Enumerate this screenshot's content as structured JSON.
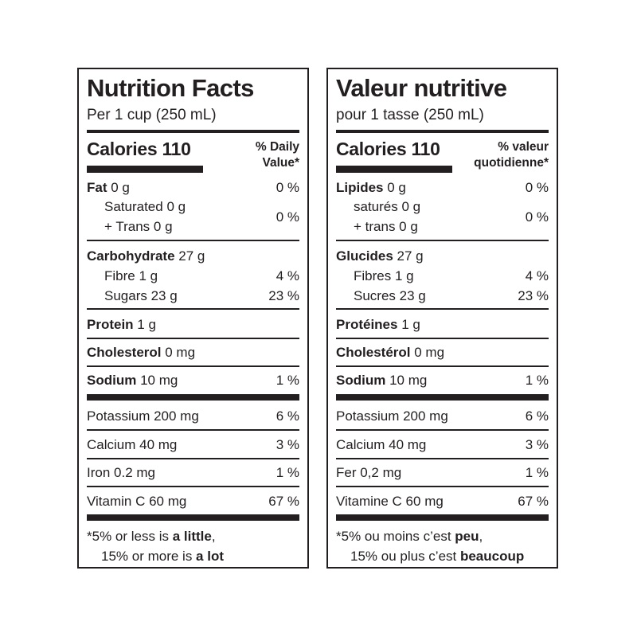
{
  "en": {
    "title": "Nutrition Facts",
    "serving": "Per 1 cup (250 mL)",
    "calories": "Calories 110",
    "dv_line1": "% Daily",
    "dv_line2": "Value*",
    "fat": {
      "name": "Fat",
      "amount": " 0 g",
      "pct": "0 %"
    },
    "sat": "Saturated 0 g",
    "trans": "+ Trans 0 g",
    "sat_trans_pct": "0 %",
    "carb": {
      "name": "Carbohydrate",
      "amount": " 27 g"
    },
    "fibre": {
      "label": "Fibre 1 g",
      "pct": "4 %"
    },
    "sugars": {
      "label": "Sugars 23 g",
      "pct": "23 %"
    },
    "protein": {
      "name": "Protein",
      "amount": " 1 g"
    },
    "cholesterol": {
      "name": "Cholesterol",
      "amount": " 0 mg"
    },
    "sodium": {
      "name": "Sodium",
      "amount": " 10 mg",
      "pct": "1 %"
    },
    "potassium": {
      "label": "Potassium 200 mg",
      "pct": "6 %"
    },
    "calcium": {
      "label": "Calcium 40 mg",
      "pct": "3 %"
    },
    "iron": {
      "label": "Iron 0.2 mg",
      "pct": "1 %"
    },
    "vitc": {
      "label": "Vitamin C 60 mg",
      "pct": "67 %"
    },
    "footnote1_pre": "*5% or less is ",
    "footnote1_bold": "a little",
    "footnote1_post": ",",
    "footnote2_pre": "15% or more is ",
    "footnote2_bold": "a lot"
  },
  "fr": {
    "title": "Valeur nutritive",
    "serving": "pour 1 tasse (250 mL)",
    "calories": "Calories 110",
    "dv_line1": "% valeur",
    "dv_line2": "quotidienne*",
    "fat": {
      "name": "Lipides",
      "amount": " 0 g",
      "pct": "0 %"
    },
    "sat": "saturés 0 g",
    "trans": "+ trans 0 g",
    "sat_trans_pct": "0 %",
    "carb": {
      "name": "Glucides",
      "amount": " 27 g"
    },
    "fibre": {
      "label": "Fibres 1 g",
      "pct": "4 %"
    },
    "sugars": {
      "label": "Sucres 23 g",
      "pct": "23 %"
    },
    "protein": {
      "name": "Protéines",
      "amount": " 1 g"
    },
    "cholesterol": {
      "name": "Cholestérol",
      "amount": " 0 mg"
    },
    "sodium": {
      "name": "Sodium",
      "amount": " 10 mg",
      "pct": "1 %"
    },
    "potassium": {
      "label": "Potassium 200 mg",
      "pct": "6 %"
    },
    "calcium": {
      "label": "Calcium 40 mg",
      "pct": "3 %"
    },
    "iron": {
      "label": "Fer 0,2 mg",
      "pct": "1 %"
    },
    "vitc": {
      "label": "Vitamine C 60 mg",
      "pct": "67 %"
    },
    "footnote1_pre": "*5% ou moins c’est ",
    "footnote1_bold": "peu",
    "footnote1_post": ",",
    "footnote2_pre": "15% ou plus c’est ",
    "footnote2_bold": "beaucoup"
  }
}
